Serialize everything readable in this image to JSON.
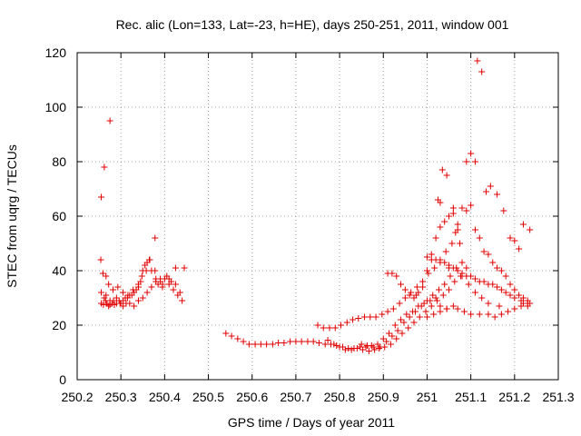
{
  "chart_data": {
    "type": "scatter",
    "title": "Rec. alic (Lon=133, Lat=-23, h=HE), days 250-251, 2011, window 001",
    "xlabel": "GPS time / Days of year 2011",
    "ylabel": "STEC from uqrg / TECUs",
    "xlim": [
      250.2,
      251.3
    ],
    "ylim": [
      0,
      120
    ],
    "xticks": [
      "250.2",
      "250.3",
      "250.4",
      "250.5",
      "250.6",
      "250.7",
      "250.8",
      "250.9",
      "251",
      "251.1",
      "251.2",
      "251.3"
    ],
    "yticks": [
      "0",
      "20",
      "40",
      "60",
      "80",
      "100",
      "120"
    ],
    "grid": true,
    "marker": "+",
    "color": "#e00000",
    "series": [
      {
        "x": [
          250.255,
          250.26,
          250.265,
          250.268,
          250.272,
          250.275,
          250.28,
          250.285,
          250.29,
          250.296,
          250.3,
          250.305,
          250.31,
          250.315,
          250.32,
          250.325,
          250.33,
          250.335,
          250.34,
          250.345,
          250.35,
          250.355,
          250.36,
          250.365,
          250.37,
          250.38,
          250.385,
          250.39,
          250.395,
          250.4,
          250.405,
          250.41,
          250.415,
          250.42,
          250.425,
          250.43,
          250.44,
          250.445,
          250.255,
          250.262,
          250.268,
          250.275,
          250.283,
          250.29,
          250.298,
          250.305,
          250.312,
          250.32,
          250.33,
          250.34,
          250.35,
          250.36,
          250.37,
          250.38,
          250.395,
          250.41,
          250.425,
          250.435,
          250.254,
          250.259,
          250.266,
          250.272,
          250.282,
          250.293,
          250.305,
          250.316,
          250.328,
          250.34,
          250.348,
          250.358,
          250.366,
          250.378,
          250.39,
          250.255,
          250.262,
          250.275,
          250.378,
          250.266,
          250.255
        ],
        "y": [
          28,
          27.5,
          29,
          28,
          27,
          29,
          28,
          27.5,
          30,
          29,
          28,
          29,
          30,
          30,
          31,
          31,
          32,
          33,
          34,
          36,
          40,
          42,
          43,
          44,
          40,
          37,
          35,
          36,
          34,
          37,
          38,
          35,
          36,
          33,
          41,
          31,
          29,
          41,
          32,
          30,
          28,
          27.5,
          29,
          28,
          28,
          27,
          28,
          28,
          27,
          29,
          30,
          32,
          34,
          36,
          35,
          37,
          35,
          32,
          44,
          39,
          38,
          35,
          33,
          34,
          32,
          31,
          33,
          35,
          38,
          40,
          44,
          40,
          37,
          67,
          78,
          95,
          52,
          31,
          28
        ]
      },
      {
        "x": [
          250.54,
          250.553,
          250.567,
          250.58,
          250.593,
          250.607,
          250.62,
          250.633,
          250.647,
          250.66,
          250.673,
          250.687,
          250.7,
          250.713,
          250.727,
          250.74,
          250.753,
          250.767,
          250.78,
          250.793,
          250.807,
          250.82,
          250.833,
          250.847,
          250.86,
          250.873,
          250.887,
          250.9,
          250.913,
          250.927,
          250.94,
          250.953,
          250.967,
          250.98,
          250.993,
          251.007,
          251.02,
          250.75,
          250.763,
          250.777,
          250.79,
          250.803,
          250.817,
          250.83,
          250.843,
          250.857,
          250.87,
          250.883,
          250.897,
          250.91,
          250.923,
          250.937,
          250.95,
          250.963,
          250.977,
          250.99,
          251.003,
          251.017,
          251.03,
          251.043,
          251.057,
          251.07,
          250.773,
          250.787,
          250.8,
          250.813,
          250.827,
          250.84,
          250.853,
          250.867,
          250.88,
          250.893,
          250.907,
          250.92,
          250.933,
          250.947,
          250.96,
          250.973,
          250.987,
          251,
          251.013,
          251.027,
          251.04,
          251.053,
          251.067,
          251.08,
          250.85,
          250.863,
          250.877,
          250.89,
          250.903,
          250.917,
          250.93,
          250.943,
          250.957,
          250.97,
          250.983,
          250.997,
          251.01,
          251.023,
          251.037,
          251.05,
          251.063,
          251.077,
          251.09
        ],
        "y": [
          17,
          16,
          15,
          14,
          13,
          13,
          13,
          13,
          13,
          13.5,
          13.5,
          14,
          14,
          14,
          14,
          14,
          13.5,
          13,
          13,
          12.5,
          12,
          11.5,
          11.5,
          12,
          12,
          12.5,
          13,
          15,
          17,
          20,
          22,
          24,
          25,
          27,
          28,
          29,
          30,
          20,
          19,
          19,
          19,
          20,
          21,
          22,
          22.5,
          23,
          23,
          23,
          24,
          25,
          26,
          28,
          30,
          32,
          34,
          36,
          39,
          41,
          44,
          47,
          50,
          55,
          14.5,
          13,
          12,
          11,
          11,
          11.5,
          11,
          10.5,
          11,
          12,
          14,
          16,
          18,
          21,
          23,
          25,
          27,
          29,
          31,
          33,
          35,
          38,
          41,
          43,
          13,
          12.5,
          12,
          11.5,
          12,
          13,
          15,
          17,
          19,
          21,
          23,
          25,
          27,
          29,
          31,
          33,
          36,
          38,
          41
        ]
      },
      {
        "x": [
          250.91,
          250.92,
          250.93,
          250.94,
          250.95,
          250.96,
          250.97,
          250.975,
          250.98,
          250.99,
          251.0,
          251.01,
          251.02,
          251.03,
          251.04,
          251.05,
          251.06,
          251.065,
          251.07,
          251.08,
          251.09,
          251.1,
          251.11,
          251.12,
          251.13,
          251.14,
          251.15,
          251.16,
          251.17,
          251.18,
          251.19,
          251.2,
          251.21,
          251.22,
          251.23,
          251.235,
          251.23,
          251.22,
          251.215,
          251.2,
          251.19,
          251.18,
          251.17,
          251.16,
          251.15,
          251.14,
          251.13,
          251.12,
          251.11,
          251.1,
          251.09,
          251.08,
          251.07,
          251.06,
          251.05,
          251.04,
          251.03,
          251.02,
          251.01,
          251.0,
          251.025,
          251.035,
          251.045,
          251.06,
          251.075,
          251.09,
          251.1,
          251.11,
          251.115,
          251.125,
          251.135,
          251.145,
          251.16,
          251.175,
          251.19,
          251.2,
          251.21,
          251.22,
          251.235,
          251.03,
          251.05,
          251.08,
          251.095,
          251.11,
          251.125,
          251.14,
          251.165,
          251.03,
          251.045,
          251.07,
          251.085,
          251.1,
          251.12,
          251.14,
          251.155,
          251.17,
          251.185,
          251.2,
          251.215,
          251.23,
          251.0,
          251.015,
          251.03,
          251.045,
          251.06
        ],
        "y": [
          39,
          39,
          38,
          35,
          33,
          31,
          30,
          31,
          32,
          34,
          40,
          46,
          52,
          56,
          58,
          60,
          61,
          54,
          57,
          63,
          62,
          64,
          55,
          52,
          47,
          46,
          43,
          41,
          40,
          38,
          35,
          33,
          31,
          30,
          29,
          28,
          27,
          28,
          29,
          30,
          31,
          32,
          33,
          34,
          35,
          35,
          36,
          36,
          37,
          38,
          38,
          39,
          40,
          41,
          42,
          43,
          43,
          44,
          44,
          45,
          66,
          77,
          75,
          63,
          50,
          80,
          83,
          80,
          117,
          113,
          69,
          71,
          68,
          62,
          52,
          51,
          48,
          57,
          55,
          65,
          41,
          38,
          35,
          32,
          30,
          28,
          27,
          27,
          26,
          26,
          25,
          24,
          24,
          24,
          23,
          24,
          25,
          26,
          27,
          28,
          23,
          24,
          25,
          26,
          27
        ]
      }
    ]
  }
}
